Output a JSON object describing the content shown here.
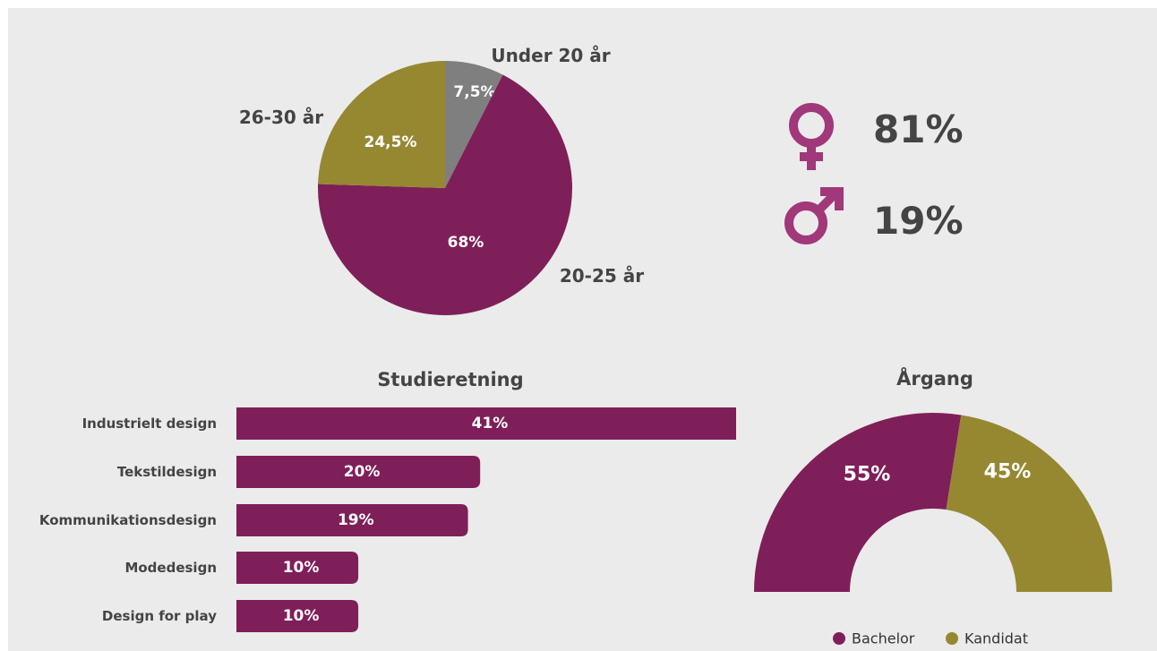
{
  "colors": {
    "primary": "#7f1f59",
    "secondary": "#958831",
    "grey": "#7f7f7f"
  },
  "chart_data": [
    {
      "type": "pie",
      "title": "",
      "slices": [
        {
          "label": "Under 20 år",
          "value": 7.5,
          "display": "7,5%",
          "color": "#7f7f7f"
        },
        {
          "label": "20-25 år",
          "value": 68,
          "display": "68%",
          "color": "#7f1f59"
        },
        {
          "label": "26-30 år",
          "value": 24.5,
          "display": "24,5%",
          "color": "#958831"
        }
      ]
    },
    {
      "type": "bar",
      "orientation": "horizontal",
      "title": "Studieretning",
      "categories": [
        "Industrielt design",
        "Tekstildesign",
        "Kommunikationsdesign",
        "Modedesign",
        "Design for play"
      ],
      "values": [
        41,
        20,
        19,
        10,
        10
      ],
      "value_labels": [
        "41%",
        "20%",
        "19%",
        "10%",
        "10%"
      ],
      "xlim": [
        0,
        41
      ],
      "color": "#7f1f59"
    },
    {
      "type": "pie",
      "subtype": "half-donut",
      "title": "Årgang",
      "slices": [
        {
          "label": "Bachelor",
          "value": 55,
          "display": "55%",
          "color": "#7f1f59"
        },
        {
          "label": "Kandidat",
          "value": 45,
          "display": "45%",
          "color": "#958831"
        }
      ],
      "legend_position": "bottom"
    }
  ],
  "gender": [
    {
      "icon": "female-icon",
      "value": "81%"
    },
    {
      "icon": "male-icon",
      "value": "19%"
    }
  ]
}
